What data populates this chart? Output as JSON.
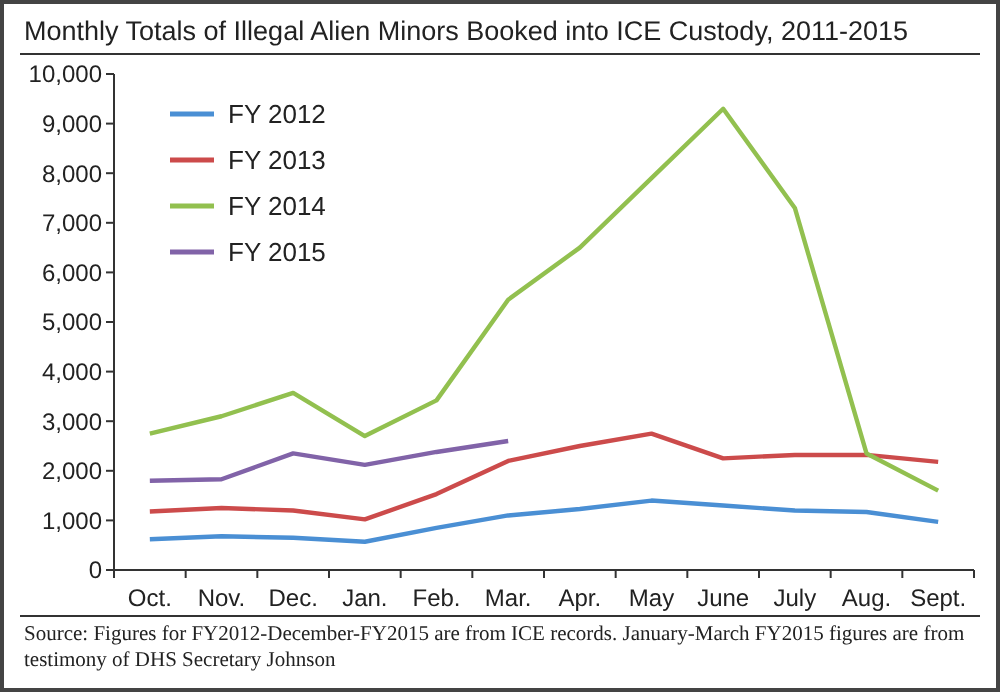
{
  "chart_data": {
    "type": "line",
    "title": "Monthly Totals of Illegal Alien Minors Booked into ICE Custody,  2011-2015",
    "categories": [
      "Oct.",
      "Nov.",
      "Dec.",
      "Jan.",
      "Feb.",
      "Mar.",
      "Apr.",
      "May",
      "June",
      "July",
      "Aug.",
      "Sept."
    ],
    "series": [
      {
        "name": "FY 2012",
        "color": "#4a8fd4",
        "values": [
          620,
          680,
          650,
          570,
          850,
          1100,
          1230,
          1400,
          1300,
          1200,
          1170,
          970
        ]
      },
      {
        "name": "FY 2013",
        "color": "#cc4b4b",
        "values": [
          1180,
          1250,
          1200,
          1020,
          1530,
          2200,
          2500,
          2750,
          2250,
          2320,
          2320,
          2180
        ]
      },
      {
        "name": "FY 2014",
        "color": "#92c04f",
        "values": [
          2750,
          3100,
          3570,
          2700,
          3420,
          5450,
          6500,
          7900,
          9300,
          7300,
          2350,
          1600
        ]
      },
      {
        "name": "FY 2015",
        "color": "#8163a8",
        "values": [
          1800,
          1830,
          2350,
          2120,
          2380,
          2600,
          null,
          null,
          null,
          null,
          null,
          null
        ]
      }
    ],
    "ylim": [
      0,
      10000
    ],
    "yticks": [
      {
        "value": 0,
        "label": "0"
      },
      {
        "value": 1000,
        "label": "1,000"
      },
      {
        "value": 2000,
        "label": "2,000"
      },
      {
        "value": 3000,
        "label": "3,000"
      },
      {
        "value": 4000,
        "label": "4,000"
      },
      {
        "value": 5000,
        "label": "5,000"
      },
      {
        "value": 6000,
        "label": "6,000"
      },
      {
        "value": 7000,
        "label": "7,000"
      },
      {
        "value": 8000,
        "label": "8,000"
      },
      {
        "value": 9000,
        "label": "9,000"
      },
      {
        "value": 10000,
        "label": "10,000"
      }
    ],
    "grid": false,
    "legend": "top left",
    "marker": "none",
    "line_style": "solid",
    "annotations": [
      "Source: Figures for FY2012-December-FY2015 are from ICE records. January-March FY2015 figures are from testimony of DHS Secretary Johnson"
    ]
  }
}
